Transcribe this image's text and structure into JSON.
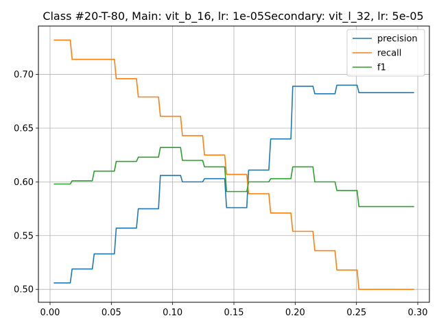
{
  "chart_data": {
    "type": "line",
    "title": "Class #20-T-80, Main: vit_b_16, lr: 1e-05Secondary: vit_l_32, lr: 5e-05",
    "xlabel": "",
    "ylabel": "",
    "xlim": [
      -0.0095,
      0.3095
    ],
    "ylim": [
      0.488,
      0.745
    ],
    "xticks": [
      0.0,
      0.05,
      0.1,
      0.15,
      0.2,
      0.25,
      0.3
    ],
    "xtick_labels": [
      "0.00",
      "0.05",
      "0.10",
      "0.15",
      "0.20",
      "0.25",
      "0.30"
    ],
    "yticks": [
      0.5,
      0.55,
      0.6,
      0.65,
      0.7
    ],
    "ytick_labels": [
      "0.50",
      "0.55",
      "0.60",
      "0.65",
      "0.70"
    ],
    "grid": true,
    "legend_position": "top-right",
    "series": [
      {
        "name": "precision",
        "color": "#1f77b4",
        "x": [
          0.003,
          0.0165,
          0.018,
          0.0345,
          0.036,
          0.0525,
          0.054,
          0.0705,
          0.072,
          0.0885,
          0.09,
          0.1065,
          0.108,
          0.1245,
          0.126,
          0.1425,
          0.144,
          0.1605,
          0.162,
          0.1785,
          0.18,
          0.1965,
          0.198,
          0.2145,
          0.216,
          0.2325,
          0.234,
          0.2505,
          0.252,
          0.297
        ],
        "y": [
          0.506,
          0.506,
          0.519,
          0.519,
          0.533,
          0.533,
          0.557,
          0.557,
          0.575,
          0.575,
          0.606,
          0.606,
          0.6,
          0.6,
          0.603,
          0.603,
          0.576,
          0.576,
          0.611,
          0.611,
          0.64,
          0.64,
          0.689,
          0.689,
          0.682,
          0.682,
          0.69,
          0.69,
          0.683,
          0.683
        ]
      },
      {
        "name": "recall",
        "color": "#ff7f0e",
        "x": [
          0.003,
          0.0165,
          0.018,
          0.0525,
          0.054,
          0.0705,
          0.072,
          0.0885,
          0.09,
          0.1065,
          0.108,
          0.1245,
          0.126,
          0.1425,
          0.144,
          0.1605,
          0.162,
          0.1785,
          0.18,
          0.1965,
          0.198,
          0.2145,
          0.216,
          0.2325,
          0.234,
          0.2505,
          0.252,
          0.297
        ],
        "y": [
          0.732,
          0.732,
          0.714,
          0.714,
          0.696,
          0.696,
          0.679,
          0.679,
          0.661,
          0.661,
          0.643,
          0.643,
          0.625,
          0.625,
          0.607,
          0.607,
          0.589,
          0.589,
          0.571,
          0.571,
          0.554,
          0.554,
          0.536,
          0.536,
          0.518,
          0.518,
          0.5,
          0.5
        ]
      },
      {
        "name": "f1",
        "color": "#2ca02c",
        "x": [
          0.003,
          0.0165,
          0.018,
          0.0345,
          0.036,
          0.0525,
          0.054,
          0.0705,
          0.072,
          0.0885,
          0.09,
          0.1065,
          0.108,
          0.1245,
          0.126,
          0.1425,
          0.144,
          0.1605,
          0.162,
          0.1785,
          0.18,
          0.1965,
          0.198,
          0.2145,
          0.216,
          0.2325,
          0.234,
          0.2505,
          0.252,
          0.297
        ],
        "y": [
          0.598,
          0.598,
          0.601,
          0.601,
          0.61,
          0.61,
          0.619,
          0.619,
          0.623,
          0.623,
          0.632,
          0.632,
          0.62,
          0.62,
          0.614,
          0.614,
          0.591,
          0.591,
          0.6,
          0.6,
          0.603,
          0.603,
          0.614,
          0.614,
          0.6,
          0.6,
          0.592,
          0.592,
          0.577,
          0.577
        ]
      }
    ]
  }
}
